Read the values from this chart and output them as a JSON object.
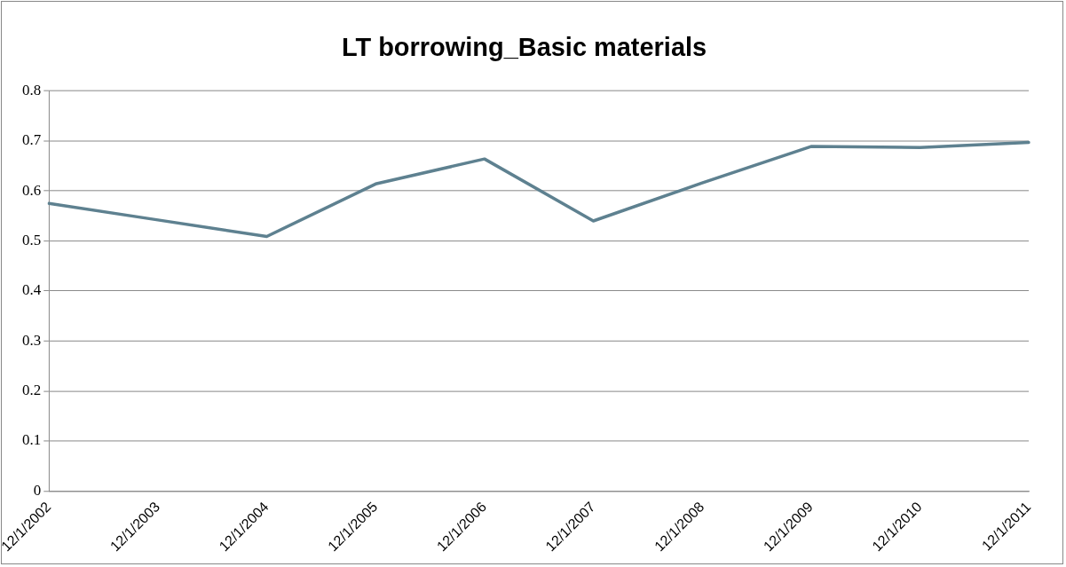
{
  "chart_data": {
    "type": "line",
    "title": "LT borrowing_Basic materials",
    "categories": [
      "12/1/2002",
      "12/1/2003",
      "12/1/2004",
      "12/1/2005",
      "12/1/2006",
      "12/1/2007",
      "12/1/2008",
      "12/1/2009",
      "12/1/2010",
      "12/1/2011"
    ],
    "series": [
      {
        "color": "#5e8190",
        "values": [
          0.575,
          0.542,
          0.509,
          0.614,
          0.664,
          0.54,
          0.616,
          0.689,
          0.687,
          0.697
        ]
      }
    ],
    "ylim": [
      0,
      0.8
    ],
    "yticks": [
      0,
      0.1,
      0.2,
      0.3,
      0.4,
      0.5,
      0.6,
      0.7,
      0.8
    ],
    "grid": "y",
    "legend": false,
    "marker": "none",
    "line_style": "solid"
  }
}
